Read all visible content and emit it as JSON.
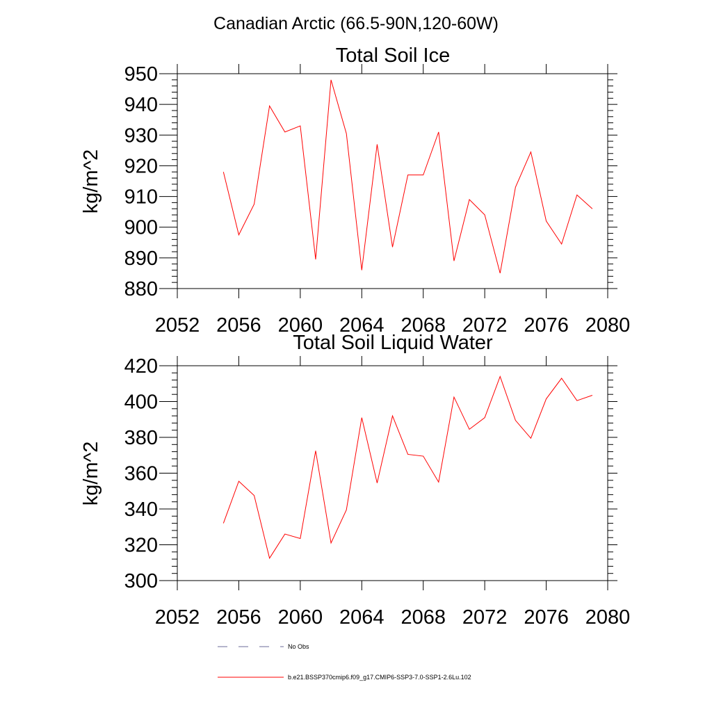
{
  "figure_title": "Canadian Arctic (66.5-90N,120-60W)",
  "colors": {
    "series": "#ff0000",
    "obs": "#6b6b99",
    "axis": "#000000",
    "background": "#ffffff"
  },
  "legend": {
    "obs_label": "No Obs",
    "series_label": "b.e21.BSSP370cmip6.f09_g17.CMIP6-SSP3-7.0-SSP1-2.6Lu.102"
  },
  "chart_data": [
    {
      "type": "line",
      "title": "Total Soil Ice",
      "xlabel": "",
      "ylabel": "kg/m^2",
      "xlim": [
        2052,
        2080
      ],
      "ylim": [
        880,
        950
      ],
      "xticks": [
        "2052",
        "2056",
        "2060",
        "2064",
        "2068",
        "2072",
        "2076",
        "2080"
      ],
      "yticks": [
        "880",
        "890",
        "900",
        "910",
        "920",
        "930",
        "940",
        "950"
      ],
      "grid": false,
      "series": [
        {
          "x": [
            2055,
            2056,
            2057,
            2058,
            2059,
            2060,
            2061,
            2062,
            2063,
            2064,
            2065,
            2066,
            2067,
            2068,
            2069,
            2070,
            2071,
            2072,
            2073,
            2074,
            2075,
            2076,
            2077,
            2078,
            2079
          ],
          "values": [
            918,
            897.5,
            907.5,
            939.5,
            931,
            933,
            889.5,
            948,
            930.5,
            886,
            927,
            893.5,
            917,
            917,
            931,
            889,
            909,
            904,
            885,
            913,
            924.5,
            902,
            894.5,
            910.5,
            906
          ]
        }
      ]
    },
    {
      "type": "line",
      "title": "Total Soil Liquid Water",
      "xlabel": "",
      "ylabel": "kg/m^2",
      "xlim": [
        2052,
        2080
      ],
      "ylim": [
        300,
        420
      ],
      "xticks": [
        "2052",
        "2056",
        "2060",
        "2064",
        "2068",
        "2072",
        "2076",
        "2080"
      ],
      "yticks": [
        "300",
        "320",
        "340",
        "360",
        "380",
        "400",
        "420"
      ],
      "grid": false,
      "series": [
        {
          "x": [
            2055,
            2056,
            2057,
            2058,
            2059,
            2060,
            2061,
            2062,
            2063,
            2064,
            2065,
            2066,
            2067,
            2068,
            2069,
            2070,
            2071,
            2072,
            2073,
            2074,
            2075,
            2076,
            2077,
            2078,
            2079
          ],
          "values": [
            332,
            355.5,
            347.5,
            312.5,
            326,
            323.5,
            372.5,
            321,
            339.5,
            391,
            354.5,
            392,
            370.5,
            369.5,
            355,
            402.5,
            384.5,
            391,
            414,
            389.5,
            379.5,
            401.5,
            413,
            400.5,
            403.5
          ]
        }
      ]
    }
  ]
}
